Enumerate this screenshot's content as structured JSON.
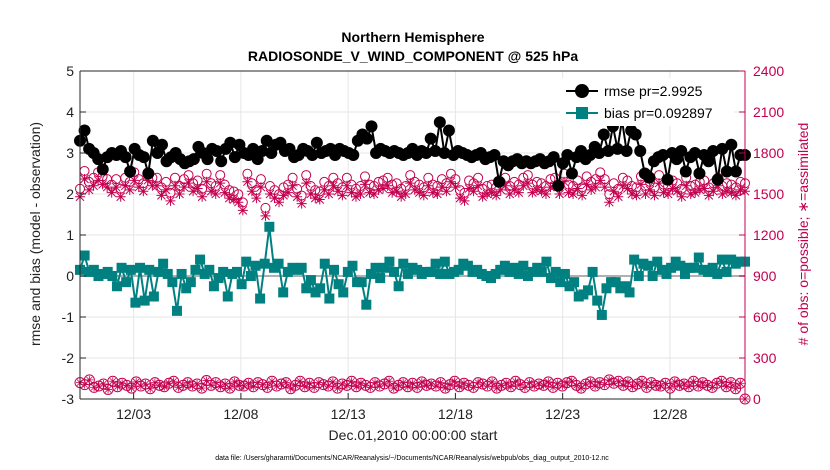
{
  "chart_data": {
    "type": "line",
    "title": "Northern Hemisphere",
    "subtitle": "RADIOSONDE_V_WIND_COMPONENT @ 525 hPa",
    "xlabel": "Dec.01,2010 00:00:00 start",
    "ylabel_left": "rmse and bias (model - observation)",
    "ylabel_right": "# of obs: o=possible; ∗=assimilated",
    "footnote": "data file: /Users/gharamti/Documents/NCAR/Reanalysis/~/Documents/NCAR/Reanalysis/webpub/obs_diag_output_2010-12.nc",
    "x_range": [
      0.5,
      31.5
    ],
    "y_left_range": [
      -3,
      5
    ],
    "y_right_range": [
      0,
      2400
    ],
    "x_tick_positions": [
      3,
      8,
      13,
      18,
      23,
      28
    ],
    "x_tick_labels": [
      "12/03",
      "12/08",
      "12/13",
      "12/18",
      "12/23",
      "12/28"
    ],
    "y_left_ticks": [
      "-3",
      "-2",
      "-1",
      "0",
      "1",
      "2",
      "3",
      "4",
      "5"
    ],
    "y_right_ticks": [
      "0",
      "300",
      "600",
      "900",
      "1200",
      "1500",
      "1800",
      "2100",
      "2400"
    ],
    "colors": {
      "rmse": "#000000",
      "bias": "#008080",
      "obs": "#c4004f",
      "zero_line": "#b0b0b0",
      "grid": "#e6e6e6"
    },
    "series": [
      {
        "name": "rmse pr=2.9925",
        "axis": "left",
        "values": [
          3.3,
          3.55,
          3.1,
          3.0,
          2.85,
          2.6,
          2.9,
          3.0,
          2.95,
          3.05,
          2.9,
          2.55,
          3.1,
          2.95,
          2.9,
          2.5,
          3.3,
          3.0,
          3.2,
          2.8,
          2.9,
          3.0,
          2.85,
          2.75,
          2.8,
          2.85,
          3.15,
          3.0,
          2.85,
          3.1,
          3.05,
          2.8,
          3.1,
          3.25,
          2.9,
          3.2,
          3.0,
          2.95,
          3.1,
          2.85,
          3.05,
          3.3,
          3.0,
          3.2,
          3.25,
          3.05,
          3.1,
          2.9,
          2.95,
          3.1,
          3.05,
          2.95,
          3.25,
          3.0,
          3.05,
          3.1,
          2.95,
          3.1,
          3.05,
          3.0,
          2.95,
          3.3,
          3.45,
          3.35,
          3.65,
          3.0,
          3.1,
          3.05,
          3.0,
          3.05,
          3.0,
          2.95,
          3.0,
          3.1,
          2.95,
          3.05,
          3.0,
          3.35,
          3.05,
          3.75,
          3.0,
          3.55,
          2.95,
          3.05,
          3.0,
          2.95,
          2.9,
          2.95,
          3.0,
          2.85,
          2.9,
          2.95,
          2.3,
          2.8,
          2.7,
          2.8,
          2.85,
          2.75,
          2.8,
          2.75,
          2.8,
          2.85,
          2.75,
          2.8,
          2.9,
          2.2,
          2.75,
          2.95,
          2.5,
          2.9,
          3.05,
          2.85,
          2.95,
          3.15,
          3.0,
          3.45,
          3.05,
          3.65,
          3.1,
          3.8,
          3.05,
          3.55,
          3.45,
          3.05,
          2.5,
          2.4,
          2.8,
          2.9,
          2.95,
          2.35,
          3.0,
          2.85,
          3.05,
          2.55,
          2.9,
          3.0,
          2.5,
          2.95,
          2.8,
          3.05,
          2.35,
          3.1,
          2.55,
          3.2,
          2.55,
          2.95,
          2.95
        ]
      },
      {
        "name": "bias pr=0.092897",
        "axis": "left",
        "values": [
          0.15,
          0.5,
          0.1,
          0.15,
          0.0,
          0.05,
          0.1,
          0.0,
          -0.25,
          0.2,
          -0.15,
          0.15,
          -0.65,
          0.2,
          -0.6,
          0.15,
          -0.5,
          0.1,
          0.3,
          0.05,
          -0.15,
          -0.85,
          0.05,
          -0.3,
          -0.15,
          0.15,
          0.4,
          0.05,
          0.15,
          -0.25,
          -0.05,
          0.1,
          -0.5,
          0.05,
          0.1,
          -0.2,
          0.35,
          0.0,
          0.25,
          -0.55,
          0.3,
          1.2,
          0.2,
          0.3,
          -0.4,
          0.1,
          0.2,
          0.15,
          0.2,
          -0.3,
          -0.1,
          -0.4,
          -0.3,
          0.3,
          -0.55,
          0.15,
          -0.2,
          -0.4,
          0.1,
          0.25,
          -0.15,
          -0.15,
          -0.7,
          0.05,
          0.2,
          -0.05,
          0.2,
          0.35,
          0.1,
          -0.25,
          0.3,
          0.05,
          0.2,
          0.15,
          0.05,
          0.1,
          0.1,
          0.3,
          0.05,
          0.35,
          0.05,
          0.1,
          0.15,
          0.3,
          0.25,
          0.1,
          0.15,
          0.05,
          0.0,
          -0.05,
          0.05,
          0.15,
          0.25,
          0.1,
          0.2,
          0.05,
          0.25,
          0.0,
          0.1,
          0.2,
          0.1,
          0.35,
          -0.05,
          0.1,
          -0.15,
          0.05,
          -0.25,
          -0.15,
          -0.5,
          -0.45,
          -0.35,
          0.1,
          -0.6,
          -0.95,
          -0.3,
          -0.15,
          -0.15,
          -0.3,
          -0.25,
          -0.4,
          0.4,
          0.0,
          0.3,
          0.25,
          0.0,
          0.35,
          0.15,
          0.05,
          0.2,
          0.35,
          0.25,
          0.05,
          0.2,
          0.2,
          0.45,
          0.15,
          0.1,
          0.2,
          0.05,
          0.4,
          0.1,
          0.4,
          0.3,
          0.35,
          0.35
        ]
      },
      {
        "name": "possible",
        "axis": "right",
        "values": [
          120,
          105,
          140,
          85,
          95,
          110,
          70,
          130,
          90,
          115,
          100,
          80,
          125,
          95,
          110,
          75,
          120,
          100,
          90,
          115,
          130,
          85,
          100,
          120,
          95,
          110,
          80,
          135,
          100,
          120,
          90,
          110,
          80,
          125,
          100,
          95,
          115,
          90,
          120,
          105,
          85,
          130,
          95,
          110,
          120,
          75,
          100,
          130,
          90,
          115,
          85,
          120,
          105,
          95,
          125,
          80,
          110,
          100,
          130,
          90,
          115,
          100,
          85,
          120,
          95,
          110,
          130,
          80,
          100,
          120,
          90,
          115,
          85,
          125,
          100,
          110,
          95,
          120,
          80,
          105,
          130,
          90,
          115,
          100,
          85,
          120,
          110,
          95,
          125,
          80,
          100,
          115,
          90,
          130,
          105,
          85,
          120,
          95,
          110,
          100,
          125,
          85,
          115,
          95,
          120,
          130,
          100,
          80,
          110,
          125,
          95,
          120,
          105,
          140,
          115,
          130,
          100,
          125,
          90,
          110,
          130,
          85,
          120,
          100,
          95,
          115,
          80,
          125,
          100,
          110,
          90,
          130,
          95,
          120,
          100,
          85,
          115,
          130,
          90,
          120,
          75,
          115,
          0
        ]
      },
      {
        "name": "assimilated",
        "axis": "right",
        "values": [
          1480,
          1610,
          1530,
          1560,
          1600,
          1570,
          1550,
          1510,
          1550,
          1480,
          1560,
          1530,
          1600,
          1550,
          1520,
          1600,
          1560,
          1560,
          1490,
          1530,
          1450,
          1560,
          1500,
          1550,
          1580,
          1520,
          1540,
          1480,
          1590,
          1520,
          1500,
          1580,
          1510,
          1470,
          1460,
          1440,
          1380,
          1590,
          1520,
          1470,
          1550,
          1340,
          1500,
          1470,
          1440,
          1490,
          1510,
          1560,
          1480,
          1430,
          1580,
          1500,
          1470,
          1460,
          1530,
          1500,
          1560,
          1520,
          1490,
          1560,
          1510,
          1480,
          1500,
          1570,
          1510,
          1500,
          1530,
          1540,
          1560,
          1510,
          1520,
          1480,
          1500,
          1580,
          1530,
          1510,
          1490,
          1560,
          1510,
          1500,
          1550,
          1520,
          1590,
          1550,
          1470,
          1450,
          1540,
          1520,
          1560,
          1480,
          1500,
          1510,
          1490,
          1530,
          1560,
          1500,
          1530,
          1510,
          1560,
          1580,
          1510,
          1530,
          1520,
          1500,
          1550,
          1560,
          1500,
          1590,
          1510,
          1500,
          1540,
          1490,
          1570,
          1530,
          1550,
          1600,
          1550,
          1440,
          1520,
          1480,
          1560,
          1540,
          1500,
          1490,
          1570,
          1500,
          1530,
          1490,
          1580,
          1510,
          1500,
          1540,
          1520,
          1480,
          1560,
          1500,
          1510,
          1530,
          1540,
          1490,
          1520,
          1560,
          1500,
          1520,
          1510,
          1490,
          1530,
          1520
        ]
      }
    ],
    "legend": {
      "position": "top-right",
      "entries": [
        "rmse pr=2.9925",
        "bias pr=0.092897"
      ]
    }
  }
}
